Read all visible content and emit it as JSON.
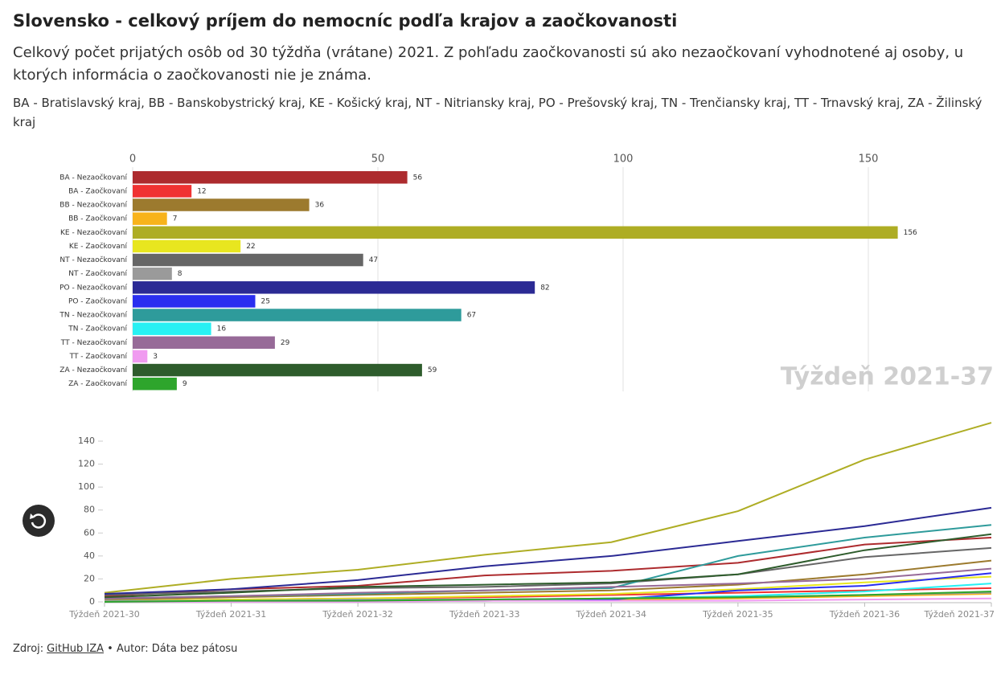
{
  "header": {
    "title": "Slovensko - celkový príjem do nemocníc podľa krajov a zaočkovanosti",
    "subtitle": "Celkový počet prijatých osôb od 30 týždňa (vrátane) 2021. Z pohľadu zaočkovanosti sú ako nezaočkovaní vyhodnotené aj osoby, u ktorých informácia o zaočkovanosti nie je známa.",
    "note": "BA - Bratislavský kraj, BB - Banskobystrický kraj, KE - Košický kraj, NT - Nitriansky kraj, PO - Prešovský kraj, TN - Trenčiansky kraj, TT - Trnavský kraj, ZA - Žilinský kraj"
  },
  "chart_data": [
    {
      "type": "bar",
      "orientation": "horizontal",
      "annotation": "Týždeň 2021-37",
      "categories": [
        "BA - Nezaočkovaní",
        "BA - Zaočkovaní",
        "BB - Nezaočkovaní",
        "BB - Zaočkovaní",
        "KE - Nezaočkovaní",
        "KE - Zaočkovaní",
        "NT - Nezaočkovaní",
        "NT - Zaočkovaní",
        "PO - Nezaočkovaní",
        "PO - Zaočkovaní",
        "TN - Nezaočkovaní",
        "TN - Zaočkovaní",
        "TT - Nezaočkovaní",
        "TT - Zaočkovaní",
        "ZA - Nezaočkovaní",
        "ZA - Zaočkovaní"
      ],
      "values": [
        56,
        12,
        36,
        7,
        156,
        22,
        47,
        8,
        82,
        25,
        67,
        16,
        29,
        3,
        59,
        9
      ],
      "colors": [
        "#ad2b2e",
        "#f03232",
        "#9c7a2e",
        "#f8b31b",
        "#aead24",
        "#e8e61f",
        "#666666",
        "#9a9a9a",
        "#2b2a94",
        "#2a2ef0",
        "#2e9b9b",
        "#28f0f3",
        "#976a98",
        "#f09bf0",
        "#2e5c2c",
        "#2ea52c"
      ],
      "xlim": [
        0,
        175
      ],
      "xticks": [
        0,
        50,
        100,
        150
      ],
      "grid": true
    },
    {
      "type": "line",
      "x": [
        "Týždeň 2021-30",
        "Týždeň 2021-31",
        "Týždeň 2021-32",
        "Týždeň 2021-33",
        "Týždeň 2021-34",
        "Týždeň 2021-35",
        "Týždeň 2021-36",
        "Týždeň 2021-37"
      ],
      "series": [
        {
          "values": [
            5,
            11,
            14,
            23,
            27,
            34,
            50,
            56
          ]
        },
        {
          "values": [
            1,
            2,
            3,
            4,
            6,
            8,
            10,
            12
          ]
        },
        {
          "values": [
            2,
            4,
            6,
            8,
            10,
            15,
            24,
            36
          ]
        },
        {
          "values": [
            0,
            0,
            1,
            1,
            2,
            3,
            5,
            7
          ]
        },
        {
          "values": [
            8,
            20,
            28,
            41,
            52,
            79,
            124,
            156
          ]
        },
        {
          "values": [
            1,
            2,
            3,
            5,
            7,
            11,
            17,
            22
          ]
        },
        {
          "values": [
            6,
            9,
            12,
            13,
            16,
            24,
            39,
            47
          ]
        },
        {
          "values": [
            1,
            1,
            2,
            2,
            3,
            4,
            6,
            8
          ]
        },
        {
          "values": [
            7,
            11,
            19,
            31,
            40,
            53,
            66,
            82
          ]
        },
        {
          "values": [
            0,
            0,
            1,
            1,
            2,
            10,
            14,
            25
          ]
        },
        {
          "values": [
            3,
            5,
            7,
            10,
            12,
            40,
            56,
            67
          ]
        },
        {
          "values": [
            0,
            1,
            1,
            2,
            3,
            5,
            9,
            16
          ]
        },
        {
          "values": [
            3,
            5,
            8,
            10,
            13,
            16,
            20,
            29
          ]
        },
        {
          "values": [
            0,
            0,
            0,
            1,
            1,
            1,
            2,
            3
          ]
        },
        {
          "values": [
            4,
            8,
            13,
            15,
            17,
            24,
            45,
            59
          ]
        },
        {
          "values": [
            0,
            1,
            1,
            2,
            3,
            4,
            6,
            9
          ]
        }
      ],
      "ylim": [
        0,
        157
      ],
      "yticks": [
        0,
        20,
        40,
        60,
        80,
        100,
        120,
        140
      ]
    }
  ],
  "footer": {
    "label": "Zdroj:",
    "link": "GitHub IZA",
    "author": "• Autor: Dáta bez pátosu"
  }
}
